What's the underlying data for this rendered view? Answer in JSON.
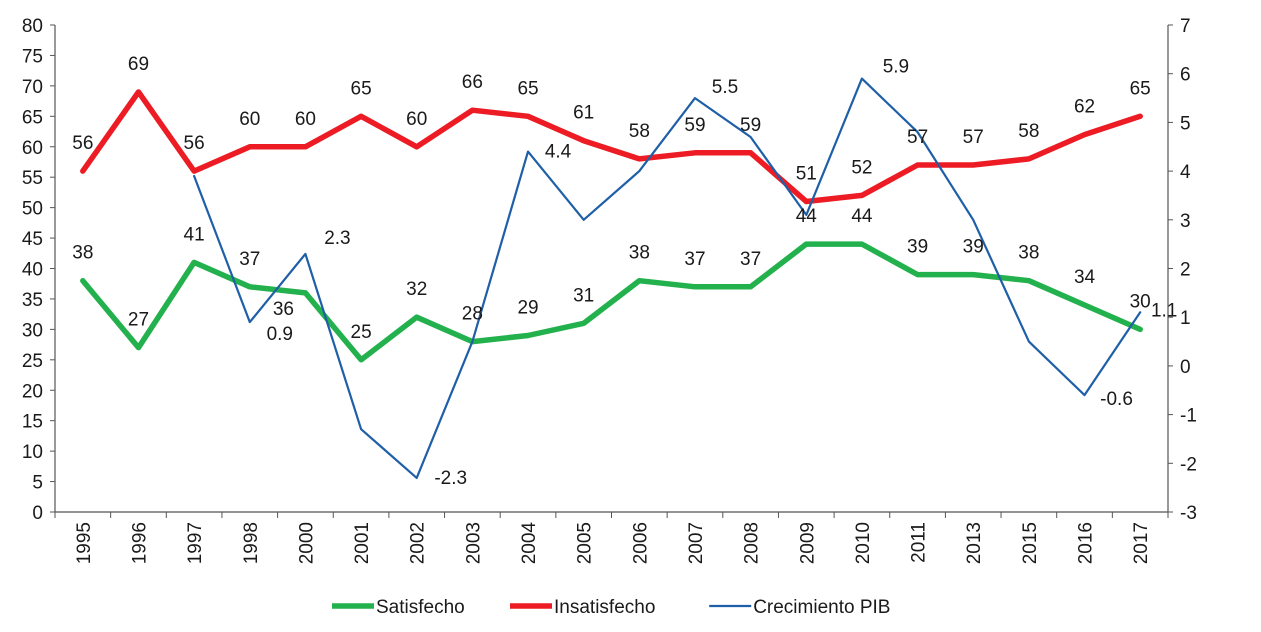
{
  "chart_data": {
    "type": "line",
    "categories": [
      "1995",
      "1996",
      "1997",
      "1998",
      "2000",
      "2001",
      "2002",
      "2003",
      "2004",
      "2005",
      "2006",
      "2007",
      "2008",
      "2009",
      "2010",
      "2011",
      "2013",
      "2015",
      "2016",
      "2017"
    ],
    "series": [
      {
        "name": "Satisfecho",
        "axis": "left",
        "color": "#22b14c",
        "values": [
          38,
          27,
          41,
          37,
          36,
          25,
          32,
          28,
          29,
          31,
          38,
          37,
          37,
          44,
          44,
          39,
          39,
          38,
          34,
          30
        ],
        "labels": [
          "38",
          "27",
          "41",
          "37",
          "36",
          "25",
          "32",
          "28",
          "29",
          "31",
          "38",
          "37",
          "37",
          "44",
          "44",
          "39",
          "39",
          "38",
          "34",
          "30"
        ]
      },
      {
        "name": "Insatisfecho",
        "axis": "left",
        "color": "#ed1c24",
        "values": [
          56,
          69,
          56,
          60,
          60,
          65,
          60,
          66,
          65,
          61,
          58,
          59,
          59,
          51,
          52,
          57,
          57,
          58,
          62,
          65
        ],
        "labels": [
          "56",
          "69",
          "56",
          "60",
          "60",
          "65",
          "60",
          "66",
          "65",
          "61",
          "58",
          "59",
          "59",
          "51",
          "52",
          "57",
          "57",
          "58",
          "62",
          "65"
        ]
      },
      {
        "name": "Crecimiento PIB",
        "axis": "right",
        "color": "#1f5fa8",
        "values": [
          null,
          null,
          3.9,
          0.9,
          2.3,
          -1.3,
          -2.3,
          0.5,
          4.4,
          3.0,
          4.0,
          5.5,
          4.7,
          3.1,
          5.9,
          4.8,
          3.0,
          0.5,
          -0.6,
          1.1
        ],
        "labels": [
          null,
          null,
          null,
          "0.9",
          "2.3",
          null,
          "-2.3",
          null,
          "4.4",
          null,
          null,
          "5.5",
          null,
          null,
          "5.9",
          null,
          null,
          null,
          "-0.6",
          "1.1"
        ]
      }
    ],
    "y_left": {
      "min": 0,
      "max": 80,
      "step": 5,
      "ticks": [
        "0",
        "5",
        "10",
        "15",
        "20",
        "25",
        "30",
        "35",
        "40",
        "45",
        "50",
        "55",
        "60",
        "65",
        "70",
        "75",
        "80"
      ]
    },
    "y_right": {
      "min": -3,
      "max": 7,
      "step": 1,
      "ticks": [
        "-3",
        "-2",
        "-1",
        "0",
        "1",
        "2",
        "3",
        "4",
        "5",
        "6",
        "7"
      ]
    },
    "title": "",
    "xlabel": "",
    "ylabel": "",
    "grid": false,
    "legend_position": "bottom-center"
  }
}
